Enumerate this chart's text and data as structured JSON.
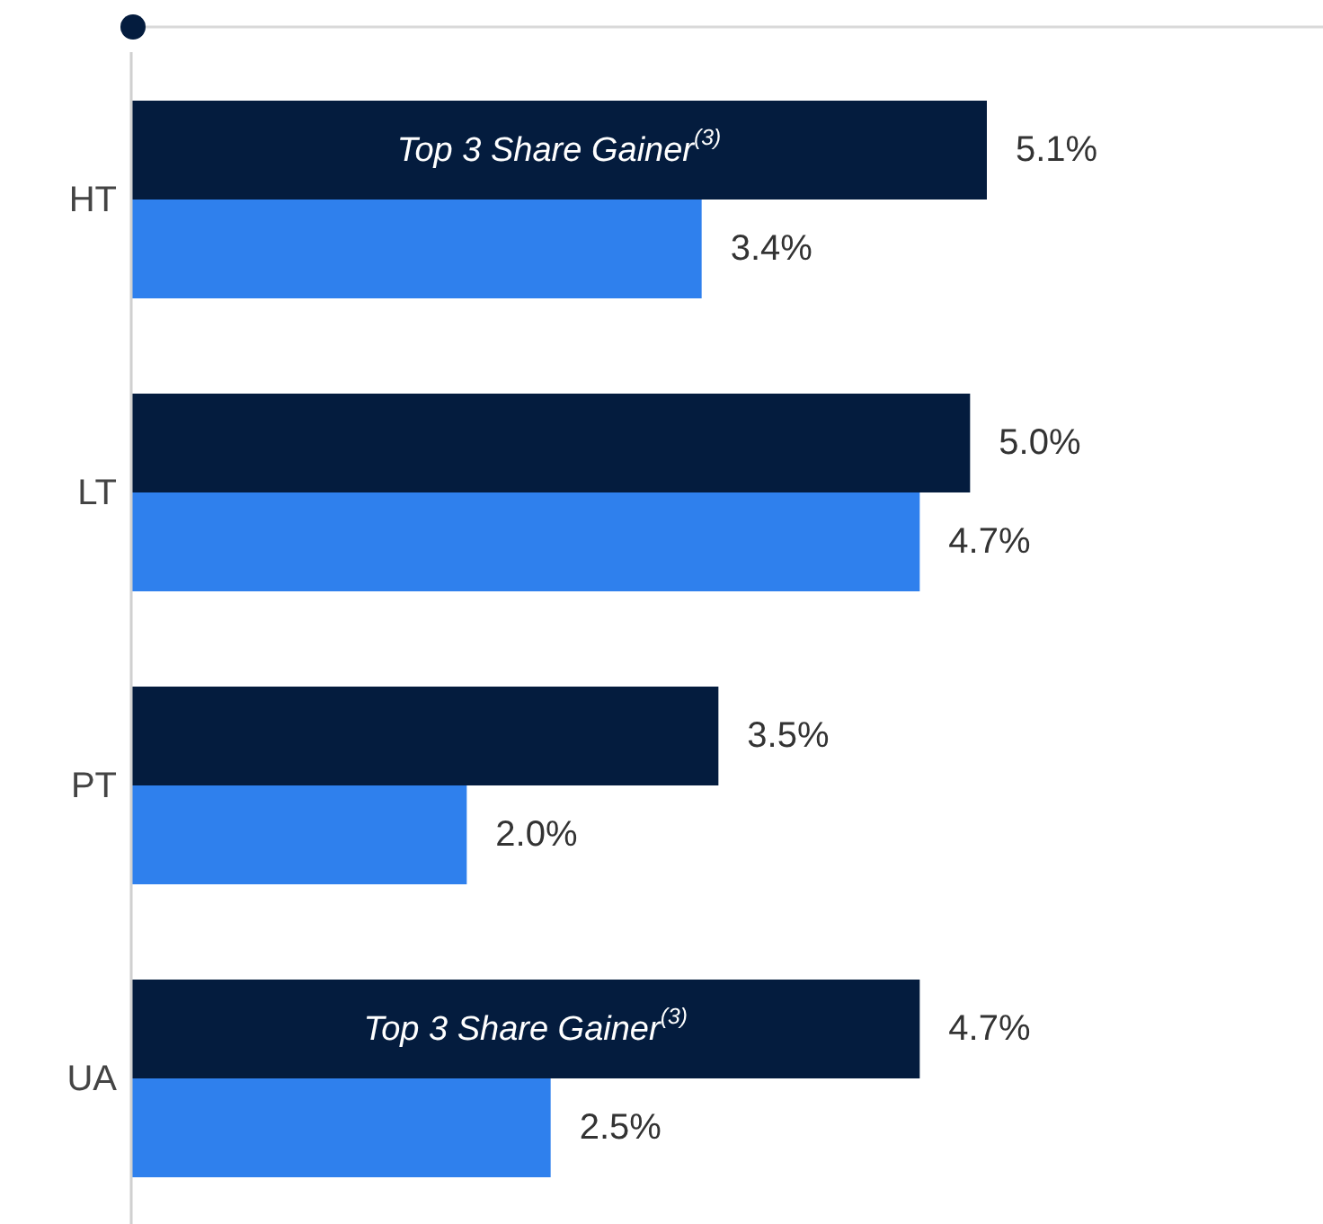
{
  "chart_data": {
    "type": "bar",
    "orientation": "horizontal",
    "categories": [
      "HT",
      "LT",
      "PT",
      "UA"
    ],
    "series": [
      {
        "color": "#041c3e",
        "values": [
          5.1,
          5.0,
          3.5,
          4.7
        ],
        "value_labels": [
          "5.1%",
          "5.0%",
          "3.5%",
          "4.7%"
        ]
      },
      {
        "color": "#2f80ed",
        "values": [
          3.4,
          4.7,
          2.0,
          2.5
        ],
        "value_labels": [
          "3.4%",
          "4.7%",
          "2.0%",
          "2.5%"
        ]
      }
    ],
    "annotations": [
      {
        "text": "Top 3 Share Gainer$^{(3)}$",
        "y": "HT"
      },
      {
        "text": "Top 3 Share Gainer$^{(3)}$",
        "y": "UA"
      }
    ],
    "stacked": false
  }
}
